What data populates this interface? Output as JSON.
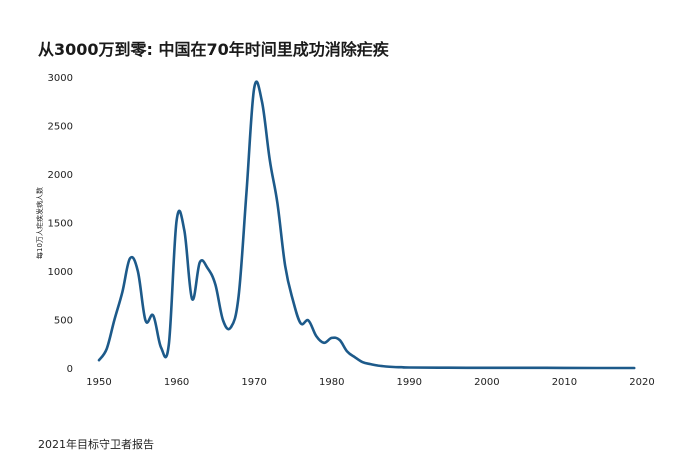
{
  "header": {
    "title": "从3000万到零: 中国在70年时间里成功消除疟疾"
  },
  "footer": {
    "source": "2021年目标守卫者报告"
  },
  "chart_data": {
    "type": "line",
    "title": "从3000万到零: 中国在70年时间里成功消除疟疾",
    "xlabel": "",
    "ylabel": "每10万人疟疾发病人数",
    "xlim": [
      1950,
      2020
    ],
    "ylim": [
      0,
      3000
    ],
    "x_ticks": [
      "1950",
      "1960",
      "1970",
      "1980",
      "1990",
      "2000",
      "2010",
      "2020"
    ],
    "y_ticks": [
      "0",
      "500",
      "1000",
      "1500",
      "2000",
      "2500",
      "3000"
    ],
    "grid": false,
    "legend": "none",
    "colors": {
      "line": "#1d5a8a"
    },
    "series": [
      {
        "x": [
          1950,
          1951,
          1952,
          1953,
          1954,
          1955,
          1956,
          1957,
          1958,
          1959,
          1960,
          1961,
          1962,
          1963,
          1964,
          1965,
          1966,
          1967,
          1968,
          1969,
          1970,
          1971,
          1972,
          1973,
          1974,
          1975,
          1976,
          1977,
          1978,
          1979,
          1980,
          1981,
          1982,
          1983,
          1984,
          1985,
          1986,
          1987,
          1988,
          1989,
          1990,
          1995,
          2000,
          2005,
          2010,
          2015,
          2019
        ],
        "values": [
          80,
          200,
          500,
          780,
          1130,
          1000,
          490,
          540,
          210,
          240,
          1520,
          1420,
          710,
          1090,
          1030,
          860,
          490,
          420,
          740,
          1800,
          2880,
          2750,
          2150,
          1700,
          1050,
          700,
          460,
          490,
          330,
          260,
          310,
          290,
          170,
          110,
          60,
          40,
          25,
          15,
          10,
          8,
          5,
          3,
          2,
          2,
          1,
          0,
          0
        ]
      }
    ]
  }
}
